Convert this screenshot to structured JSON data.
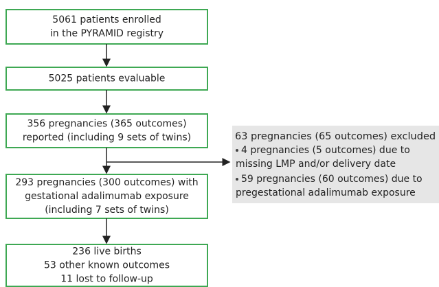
{
  "nodes": [
    {
      "lines": [
        "5061 patients enrolled",
        "in the PYRAMID registry"
      ]
    },
    {
      "lines": [
        "5025 patients evaluable"
      ]
    },
    {
      "lines": [
        "356 pregnancies (365 outcomes)",
        "reported (including 9 sets  of twins)"
      ]
    },
    {
      "lines": [
        "293 pregnancies (300 outcomes) with",
        "gestational adalimumab exposure",
        "(including 7 sets of twins)"
      ]
    },
    {
      "lines": [
        "236 live births",
        "53 other known outcomes",
        "11 lost to follow-up"
      ]
    }
  ],
  "exclusion": {
    "title": "63 pregnancies (65 outcomes) excluded",
    "items": [
      {
        "lines": [
          "4 pregnancies (5 outcomes) due to",
          "missing LMP and/or delivery date"
        ]
      },
      {
        "lines": [
          "59 pregnancies (60 outcomes) due to",
          "pregestational adalimumab exposure"
        ]
      }
    ]
  }
}
